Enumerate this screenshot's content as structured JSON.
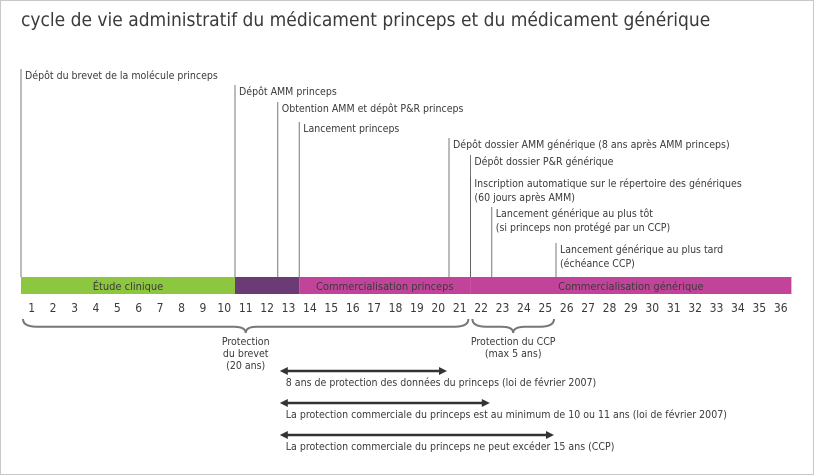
{
  "title": "cycle de vie administratif du médicament princeps et du médicament générique",
  "events": [
    {
      "year": 1,
      "lines": [
        "Dépôt du brevet de la molécule princeps"
      ]
    },
    {
      "year": 11,
      "lines": [
        "Dépôt AMM princeps"
      ]
    },
    {
      "year": 13,
      "lines": [
        "Obtention AMM et dépôt P&R princeps"
      ]
    },
    {
      "year": 14,
      "lines": [
        "Lancement princeps"
      ]
    },
    {
      "year": 21,
      "lines": [
        "Dépôt dossier AMM générique (8 ans après AMM princeps)"
      ]
    },
    {
      "year": 22,
      "lines": [
        "Dépôt dossier P&R générique"
      ]
    },
    {
      "year": 22,
      "lines": [
        "Inscription automatique sur le répertoire des génériques",
        "(60 jours après AMM)"
      ]
    },
    {
      "year": 23,
      "lines": [
        "Lancement générique au plus tôt",
        "(si princeps non protégé par un CCP)"
      ]
    },
    {
      "year": 26,
      "lines": [
        "Lancement générique au plus tard",
        "(échéance CCP)"
      ]
    }
  ],
  "phases": [
    {
      "label": "Étude clinique",
      "start": 1,
      "end": 10,
      "color": "#8dc63f"
    },
    {
      "label": "",
      "start": 11,
      "end": 13,
      "color": "#6b3b75"
    },
    {
      "label": "Commercialisation princeps",
      "start": 14,
      "end": 21,
      "color": "#c2449a"
    },
    {
      "label": "Commercialisation générique",
      "start": 22,
      "end": 36,
      "color": "#c2449a"
    }
  ],
  "years": [
    "1",
    "2",
    "3",
    "4",
    "5",
    "6",
    "7",
    "8",
    "9",
    "10",
    "11",
    "12",
    "13",
    "14",
    "15",
    "16",
    "17",
    "18",
    "19",
    "20",
    "21",
    "22",
    "23",
    "24",
    "25",
    "26",
    "27",
    "28",
    "29",
    "30",
    "31",
    "32",
    "33",
    "34",
    "35",
    "36"
  ],
  "braces": [
    {
      "start": 1,
      "end": 21,
      "lines": [
        "Protection",
        "du brevet",
        "(20 ans)"
      ]
    },
    {
      "start": 22,
      "end": 25,
      "lines": [
        "Protection du CCP",
        "(max 5 ans)"
      ]
    }
  ],
  "arrows": [
    {
      "start": 13,
      "end": 21,
      "label": "8 ans de protection des données du princeps (loi de février 2007)"
    },
    {
      "start": 13,
      "end": 23,
      "label": "La protection commerciale du princeps est au minimum de 10 ou 11 ans (loi de février 2007)"
    },
    {
      "start": 13,
      "end": 26,
      "label": "La protection commerciale du princeps ne peut excéder 15 ans (CCP)"
    }
  ],
  "colors": {
    "text": "#3a3a3a",
    "line": "#555555",
    "brace": "#777777",
    "arrow": "#333333"
  }
}
